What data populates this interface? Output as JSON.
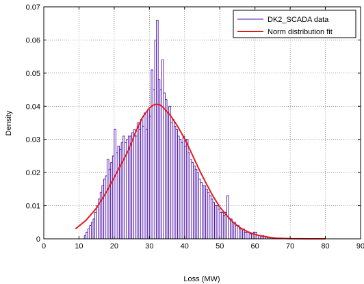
{
  "chart_data": {
    "type": "bar",
    "title": "",
    "xlabel": "Loss (MW)",
    "ylabel": "Density",
    "xlim": [
      0,
      90
    ],
    "ylim": [
      0,
      0.07
    ],
    "xticks": [
      0,
      10,
      20,
      30,
      40,
      50,
      60,
      70,
      80,
      90
    ],
    "yticks": [
      0,
      0.01,
      0.02,
      0.03,
      0.04,
      0.05,
      0.06,
      0.07
    ],
    "xtick_labels": [
      "0",
      "10",
      "20",
      "30",
      "40",
      "50",
      "60",
      "70",
      "80",
      "90"
    ],
    "ytick_labels": [
      "0",
      "0.01",
      "0.02",
      "0.03",
      "0.04",
      "0.05",
      "0.06",
      "0.07"
    ],
    "grid": true,
    "legend": {
      "position": "top-right",
      "entries": [
        "DK2_SCADA data",
        "Norm distribution fit"
      ]
    },
    "colors": {
      "histogram": "#4b0fa8",
      "fit": "#e31a1c"
    },
    "series": [
      {
        "name": "DK2_SCADA data",
        "kind": "histogram",
        "bin_width": 0.5,
        "x": [
          11.5,
          12,
          12.5,
          13,
          13.5,
          14,
          14.5,
          15,
          15.5,
          16,
          16.5,
          17,
          17.5,
          18,
          18.5,
          19,
          19.5,
          20,
          20.5,
          21,
          21.5,
          22,
          22.5,
          23,
          23.5,
          24,
          24.5,
          25,
          25.5,
          26,
          26.5,
          27,
          27.5,
          28,
          28.5,
          29,
          29.5,
          30,
          30.5,
          31,
          31.5,
          32,
          32.5,
          33,
          33.5,
          34,
          34.5,
          35,
          35.5,
          36,
          36.5,
          37,
          37.5,
          38,
          38.5,
          39,
          39.5,
          40,
          40.5,
          41,
          41.5,
          42,
          42.5,
          43,
          43.5,
          44,
          44.5,
          45,
          45.5,
          46,
          46.5,
          47,
          47.5,
          48,
          48.5,
          49,
          49.5,
          50,
          50.5,
          51,
          51.5,
          52,
          52.5,
          53,
          53.5,
          54,
          54.5,
          55,
          55.5,
          56,
          56.5,
          57,
          57.5,
          58,
          58.5,
          59,
          59.5,
          60,
          60.5,
          61,
          61.5,
          62,
          62.5,
          63,
          63.5,
          64,
          64.5,
          65,
          65.5,
          66,
          66.5,
          67,
          67.5,
          68
        ],
        "values": [
          0.001,
          0.002,
          0.003,
          0.004,
          0.005,
          0.006,
          0.008,
          0.01,
          0.012,
          0.014,
          0.016,
          0.018,
          0.019,
          0.024,
          0.021,
          0.023,
          0.025,
          0.033,
          0.026,
          0.028,
          0.027,
          0.029,
          0.031,
          0.029,
          0.03,
          0.031,
          0.031,
          0.032,
          0.033,
          0.031,
          0.035,
          0.033,
          0.036,
          0.034,
          0.038,
          0.033,
          0.039,
          0.037,
          0.051,
          0.045,
          0.06,
          0.066,
          0.048,
          0.045,
          0.054,
          0.044,
          0.042,
          0.038,
          0.04,
          0.035,
          0.036,
          0.034,
          0.033,
          0.031,
          0.03,
          0.029,
          0.031,
          0.028,
          0.03,
          0.026,
          0.024,
          0.023,
          0.022,
          0.021,
          0.02,
          0.018,
          0.017,
          0.016,
          0.016,
          0.015,
          0.014,
          0.013,
          0.012,
          0.011,
          0.01,
          0.01,
          0.009,
          0.008,
          0.008,
          0.007,
          0.008,
          0.013,
          0.006,
          0.006,
          0.005,
          0.005,
          0.004,
          0.004,
          0.003,
          0.003,
          0.003,
          0.002,
          0.002,
          0.002,
          0.0015,
          0.0015,
          0.002,
          0.002,
          0.001,
          0.001,
          0.001,
          0.001,
          0.0008,
          0.0007,
          0.0006,
          0.0005,
          0.0004,
          0.0003,
          0.0003,
          0.0002,
          0.0002,
          0.0001,
          0.0001,
          0.0001
        ]
      },
      {
        "name": "Norm distribution fit",
        "kind": "line",
        "x": [
          9,
          12,
          15,
          18,
          20,
          22,
          24,
          26,
          28,
          30,
          31,
          32,
          33,
          34,
          36,
          38,
          40,
          42,
          44,
          46,
          48,
          50,
          52,
          54,
          56,
          58,
          60,
          63,
          66,
          70,
          75,
          80
        ],
        "values": [
          0.003,
          0.0056,
          0.0093,
          0.0145,
          0.0185,
          0.0226,
          0.0266,
          0.032,
          0.0366,
          0.0395,
          0.0403,
          0.0406,
          0.0404,
          0.0396,
          0.0372,
          0.034,
          0.0302,
          0.0258,
          0.0212,
          0.017,
          0.013,
          0.0096,
          0.007,
          0.0048,
          0.0032,
          0.0021,
          0.0013,
          0.0006,
          0.0002,
          5e-05,
          1e-05,
          0.0
        ]
      }
    ]
  }
}
